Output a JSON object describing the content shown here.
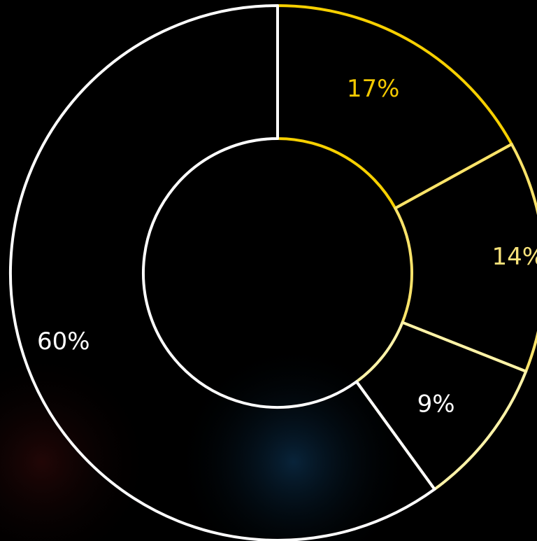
{
  "chart_data": {
    "type": "pie",
    "style": "donut",
    "title": "",
    "categories": [
      "",
      "",
      "",
      ""
    ],
    "values": [
      17,
      14,
      9,
      60
    ],
    "labels": [
      "17%",
      "14%",
      "9%",
      "60%"
    ],
    "start_angle_deg": 0,
    "direction": "clockwise",
    "colors": [
      "#f7d000",
      "#fae36a",
      "#fff3a8",
      "#ffffff"
    ],
    "label_colors": [
      "#f2c800",
      "#f7e27a",
      "#ffffff",
      "#ffffff"
    ],
    "background": "#000000"
  }
}
